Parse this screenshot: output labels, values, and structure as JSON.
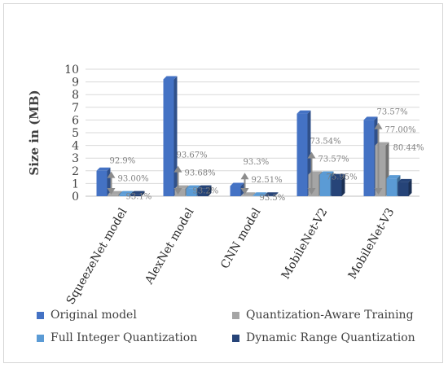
{
  "chart_data": {
    "type": "bar",
    "ylabel": "Size in (MB)",
    "ylim": [
      0,
      10
    ],
    "yticks": [
      0,
      1,
      2,
      3,
      4,
      5,
      6,
      7,
      8,
      9,
      10
    ],
    "grid": true,
    "legend_position": "bottom",
    "categories": [
      "SqueezeNet model",
      "AlexNet model",
      "CNN model",
      "MobileNet-V2",
      "MobileNet-V3"
    ],
    "series": [
      {
        "name": "Original model",
        "color": "#4472c4",
        "values": [
          2.0,
          9.2,
          0.8,
          6.5,
          6.0
        ]
      },
      {
        "name": "Quantization-Aware Training",
        "color": "#a5a5a5",
        "values": [
          0.15,
          0.6,
          0.05,
          1.7,
          4.0
        ]
      },
      {
        "name": "Full Integer Quantization",
        "color": "#5b9bd5",
        "values": [
          0.15,
          0.6,
          0.05,
          1.7,
          1.4
        ]
      },
      {
        "name": "Dynamic Range Quantization",
        "color": "#264478",
        "values": [
          0.15,
          0.6,
          0.05,
          1.5,
          1.1
        ]
      }
    ],
    "annotations": [
      {
        "category": "SqueezeNet model",
        "texts": [
          "92.9%",
          "93.00%",
          "93.1%"
        ]
      },
      {
        "category": "AlexNet model",
        "texts": [
          "93.67%",
          "93.68%",
          "93.2%"
        ]
      },
      {
        "category": "CNN model",
        "texts": [
          "93.3%",
          "92.51%",
          "93.5%"
        ]
      },
      {
        "category": "MobileNet-V2",
        "texts": [
          "73.54%",
          "73.57%",
          "75.95%"
        ]
      },
      {
        "category": "MobileNet-V3",
        "texts": [
          "73.57%",
          "77.00%",
          "80.44%"
        ]
      }
    ]
  }
}
